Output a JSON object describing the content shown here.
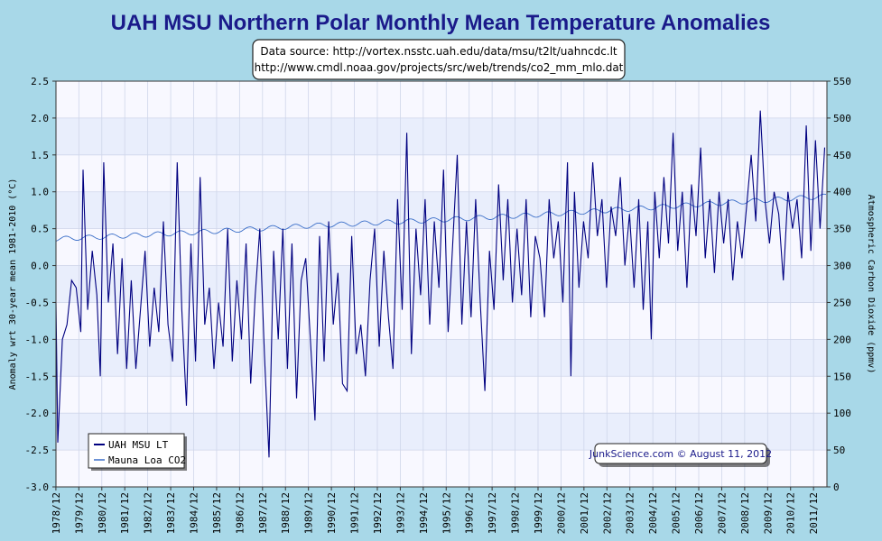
{
  "chart_data": {
    "type": "line",
    "title": "UAH MSU Northern Polar Monthly Mean Temperature Anomalies",
    "source_lines": [
      "Data source: http://vortex.nsstc.uah.edu/data/msu/t2lt/uahncdc.lt",
      "http://www.cmdl.noaa.gov/projects/src/web/trends/co2_mm_mlo.dat"
    ],
    "ylabel": "Anomaly wrt 30-year mean 1981-2010 (°C)",
    "y2label": "Atmospheric Carbon Dioxide (ppmv)",
    "ylim": [
      -3.0,
      2.5
    ],
    "y2lim": [
      0,
      550
    ],
    "xlim": [
      1978.92,
      2012.5
    ],
    "y_ticks": [
      "2.5",
      "2.0",
      "1.5",
      "1.0",
      "0.5",
      "0.0",
      "-0.5",
      "-1.0",
      "-1.5",
      "-2.0",
      "-2.5",
      "-3.0"
    ],
    "y2_ticks": [
      "550",
      "500",
      "450",
      "400",
      "350",
      "300",
      "250",
      "200",
      "150",
      "100",
      "50",
      "0"
    ],
    "x_tick_labels": [
      "1978/12",
      "1979/12",
      "1980/12",
      "1981/12",
      "1982/12",
      "1983/12",
      "1984/12",
      "1985/12",
      "1986/12",
      "1987/12",
      "1988/12",
      "1989/12",
      "1990/12",
      "1991/12",
      "1992/12",
      "1993/12",
      "1994/12",
      "1995/12",
      "1996/12",
      "1997/12",
      "1998/12",
      "1999/12",
      "2000/12",
      "2001/12",
      "2002/12",
      "2003/12",
      "2004/12",
      "2005/12",
      "2006/12",
      "2007/12",
      "2008/12",
      "2009/12",
      "2010/12",
      "2011/12"
    ],
    "grid": true,
    "legend_position": "bottom-left",
    "series": [
      {
        "name": "UAH MSU LT",
        "color": "#000080",
        "axis": "left",
        "points": [
          [
            1978.92,
            -0.5
          ],
          [
            1979.0,
            -2.4
          ],
          [
            1979.2,
            -1.0
          ],
          [
            1979.4,
            -0.8
          ],
          [
            1979.6,
            -0.2
          ],
          [
            1979.8,
            -0.3
          ],
          [
            1980.0,
            -0.9
          ],
          [
            1980.1,
            1.3
          ],
          [
            1980.3,
            -0.6
          ],
          [
            1980.5,
            0.2
          ],
          [
            1980.7,
            -0.4
          ],
          [
            1980.85,
            -1.5
          ],
          [
            1981.0,
            1.4
          ],
          [
            1981.2,
            -0.5
          ],
          [
            1981.4,
            0.3
          ],
          [
            1981.6,
            -1.2
          ],
          [
            1981.8,
            0.1
          ],
          [
            1982.0,
            -1.4
          ],
          [
            1982.2,
            -0.2
          ],
          [
            1982.4,
            -1.4
          ],
          [
            1982.6,
            -0.6
          ],
          [
            1982.8,
            0.2
          ],
          [
            1983.0,
            -1.1
          ],
          [
            1983.2,
            -0.3
          ],
          [
            1983.4,
            -0.9
          ],
          [
            1983.6,
            0.6
          ],
          [
            1983.8,
            -0.8
          ],
          [
            1984.0,
            -1.3
          ],
          [
            1984.2,
            1.4
          ],
          [
            1984.4,
            -0.6
          ],
          [
            1984.6,
            -1.9
          ],
          [
            1984.8,
            0.3
          ],
          [
            1985.0,
            -1.3
          ],
          [
            1985.2,
            1.2
          ],
          [
            1985.4,
            -0.8
          ],
          [
            1985.6,
            -0.3
          ],
          [
            1985.8,
            -1.4
          ],
          [
            1986.0,
            -0.5
          ],
          [
            1986.2,
            -1.1
          ],
          [
            1986.4,
            0.5
          ],
          [
            1986.6,
            -1.3
          ],
          [
            1986.8,
            -0.2
          ],
          [
            1987.0,
            -1.0
          ],
          [
            1987.2,
            0.3
          ],
          [
            1987.4,
            -1.6
          ],
          [
            1987.6,
            -0.4
          ],
          [
            1987.8,
            0.5
          ],
          [
            1988.0,
            -1.2
          ],
          [
            1988.2,
            -2.6
          ],
          [
            1988.4,
            0.2
          ],
          [
            1988.6,
            -1.0
          ],
          [
            1988.8,
            0.5
          ],
          [
            1989.0,
            -1.4
          ],
          [
            1989.2,
            0.3
          ],
          [
            1989.4,
            -1.8
          ],
          [
            1989.6,
            -0.2
          ],
          [
            1989.8,
            0.1
          ],
          [
            1990.0,
            -1.0
          ],
          [
            1990.2,
            -2.1
          ],
          [
            1990.4,
            0.4
          ],
          [
            1990.6,
            -1.3
          ],
          [
            1990.8,
            0.6
          ],
          [
            1991.0,
            -0.8
          ],
          [
            1991.2,
            -0.1
          ],
          [
            1991.4,
            -1.6
          ],
          [
            1991.6,
            -1.7
          ],
          [
            1991.8,
            0.4
          ],
          [
            1992.0,
            -1.2
          ],
          [
            1992.2,
            -0.8
          ],
          [
            1992.4,
            -1.5
          ],
          [
            1992.6,
            -0.2
          ],
          [
            1992.8,
            0.5
          ],
          [
            1993.0,
            -1.1
          ],
          [
            1993.2,
            0.2
          ],
          [
            1993.4,
            -0.7
          ],
          [
            1993.6,
            -1.4
          ],
          [
            1993.8,
            0.9
          ],
          [
            1994.0,
            -0.6
          ],
          [
            1994.2,
            1.8
          ],
          [
            1994.4,
            -1.2
          ],
          [
            1994.6,
            0.5
          ],
          [
            1994.8,
            -0.4
          ],
          [
            1995.0,
            0.9
          ],
          [
            1995.2,
            -0.8
          ],
          [
            1995.4,
            0.6
          ],
          [
            1995.6,
            -0.3
          ],
          [
            1995.8,
            1.3
          ],
          [
            1996.0,
            -0.9
          ],
          [
            1996.2,
            0.3
          ],
          [
            1996.4,
            1.5
          ],
          [
            1996.6,
            -0.8
          ],
          [
            1996.8,
            0.6
          ],
          [
            1997.0,
            -0.7
          ],
          [
            1997.2,
            0.9
          ],
          [
            1997.4,
            -0.5
          ],
          [
            1997.6,
            -1.7
          ],
          [
            1997.8,
            0.2
          ],
          [
            1998.0,
            -0.6
          ],
          [
            1998.2,
            1.1
          ],
          [
            1998.4,
            -0.2
          ],
          [
            1998.6,
            0.9
          ],
          [
            1998.8,
            -0.5
          ],
          [
            1999.0,
            0.5
          ],
          [
            1999.2,
            -0.4
          ],
          [
            1999.4,
            0.9
          ],
          [
            1999.6,
            -0.7
          ],
          [
            1999.8,
            0.4
          ],
          [
            2000.0,
            0.1
          ],
          [
            2000.2,
            -0.7
          ],
          [
            2000.4,
            0.9
          ],
          [
            2000.6,
            0.1
          ],
          [
            2000.8,
            0.6
          ],
          [
            2001.0,
            -0.5
          ],
          [
            2001.2,
            1.4
          ],
          [
            2001.35,
            -1.5
          ],
          [
            2001.5,
            1.0
          ],
          [
            2001.7,
            -0.3
          ],
          [
            2001.9,
            0.6
          ],
          [
            2002.1,
            0.1
          ],
          [
            2002.3,
            1.4
          ],
          [
            2002.5,
            0.4
          ],
          [
            2002.7,
            0.9
          ],
          [
            2002.9,
            -0.3
          ],
          [
            2003.1,
            0.8
          ],
          [
            2003.3,
            0.4
          ],
          [
            2003.5,
            1.2
          ],
          [
            2003.7,
            0.0
          ],
          [
            2003.9,
            0.7
          ],
          [
            2004.1,
            -0.3
          ],
          [
            2004.3,
            0.9
          ],
          [
            2004.5,
            -0.6
          ],
          [
            2004.7,
            0.6
          ],
          [
            2004.85,
            -1.0
          ],
          [
            2005.0,
            1.0
          ],
          [
            2005.2,
            0.1
          ],
          [
            2005.4,
            1.2
          ],
          [
            2005.6,
            0.3
          ],
          [
            2005.8,
            1.8
          ],
          [
            2006.0,
            0.2
          ],
          [
            2006.2,
            1.0
          ],
          [
            2006.4,
            -0.3
          ],
          [
            2006.6,
            1.1
          ],
          [
            2006.8,
            0.4
          ],
          [
            2007.0,
            1.6
          ],
          [
            2007.2,
            0.1
          ],
          [
            2007.4,
            0.9
          ],
          [
            2007.6,
            -0.1
          ],
          [
            2007.8,
            1.0
          ],
          [
            2008.0,
            0.3
          ],
          [
            2008.2,
            0.9
          ],
          [
            2008.4,
            -0.2
          ],
          [
            2008.6,
            0.6
          ],
          [
            2008.8,
            0.1
          ],
          [
            2009.0,
            0.8
          ],
          [
            2009.2,
            1.5
          ],
          [
            2009.4,
            0.6
          ],
          [
            2009.6,
            2.1
          ],
          [
            2009.8,
            0.9
          ],
          [
            2010.0,
            0.3
          ],
          [
            2010.2,
            1.0
          ],
          [
            2010.4,
            0.7
          ],
          [
            2010.6,
            -0.2
          ],
          [
            2010.8,
            1.0
          ],
          [
            2011.0,
            0.5
          ],
          [
            2011.2,
            0.9
          ],
          [
            2011.4,
            0.1
          ],
          [
            2011.6,
            1.9
          ],
          [
            2011.8,
            0.2
          ],
          [
            2012.0,
            1.7
          ],
          [
            2012.2,
            0.5
          ],
          [
            2012.4,
            1.6
          ]
        ]
      },
      {
        "name": "Mauna Loa CO2",
        "color": "#3a6ec8",
        "axis": "right",
        "trend": [
          [
            1978.92,
            336
          ],
          [
            1985,
            345
          ],
          [
            1990,
            354
          ],
          [
            1995,
            361
          ],
          [
            2000,
            369
          ],
          [
            2005,
            379
          ],
          [
            2010,
            389
          ],
          [
            2012.5,
            394
          ]
        ],
        "seasonal_amplitude": 3.2
      }
    ]
  },
  "legend": {
    "items": [
      {
        "label": "UAH MSU LT",
        "color": "#000080"
      },
      {
        "label": "Mauna Loa CO2",
        "color": "#3a6ec8"
      }
    ]
  },
  "credit": "JunkScience.com © August 11, 2012"
}
